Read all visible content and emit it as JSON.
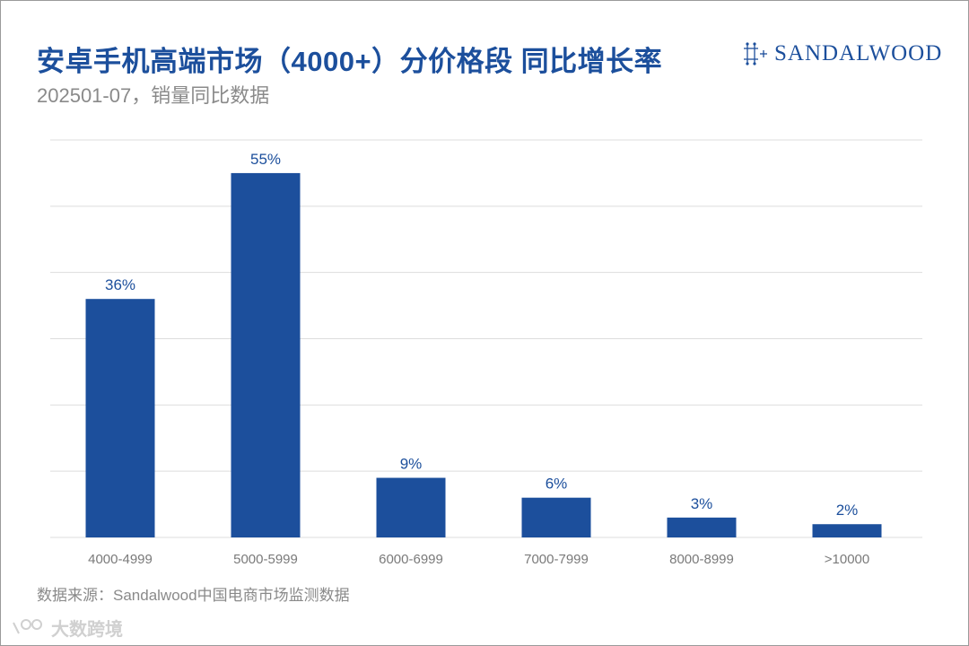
{
  "header": {
    "title": "安卓手机高端市场（4000+）分价格段 同比增长率",
    "subtitle": "202501-07，销量同比数据",
    "logo_text": "SANDALWOOD"
  },
  "footer": {
    "source": "数据来源：Sandalwood中国电商市场监测数据"
  },
  "watermark": {
    "text": "大数跨境"
  },
  "colors": {
    "bar": "#1c4f9c",
    "title": "#1c4f9c",
    "grid": "#dddddd",
    "axis_text": "#7a7a7a"
  },
  "chart_data": {
    "type": "bar",
    "categories": [
      "4000-4999",
      "5000-5999",
      "6000-6999",
      "7000-7999",
      "8000-8999",
      ">10000"
    ],
    "values": [
      36,
      55,
      9,
      6,
      3,
      2
    ],
    "labels": [
      "36%",
      "55%",
      "9%",
      "6%",
      "3%",
      "2%"
    ],
    "unit": "%",
    "ylim": [
      0,
      60
    ],
    "grid": true,
    "title": "安卓手机高端市场（4000+）分价格段 同比增长率",
    "xlabel": "",
    "ylabel": ""
  }
}
